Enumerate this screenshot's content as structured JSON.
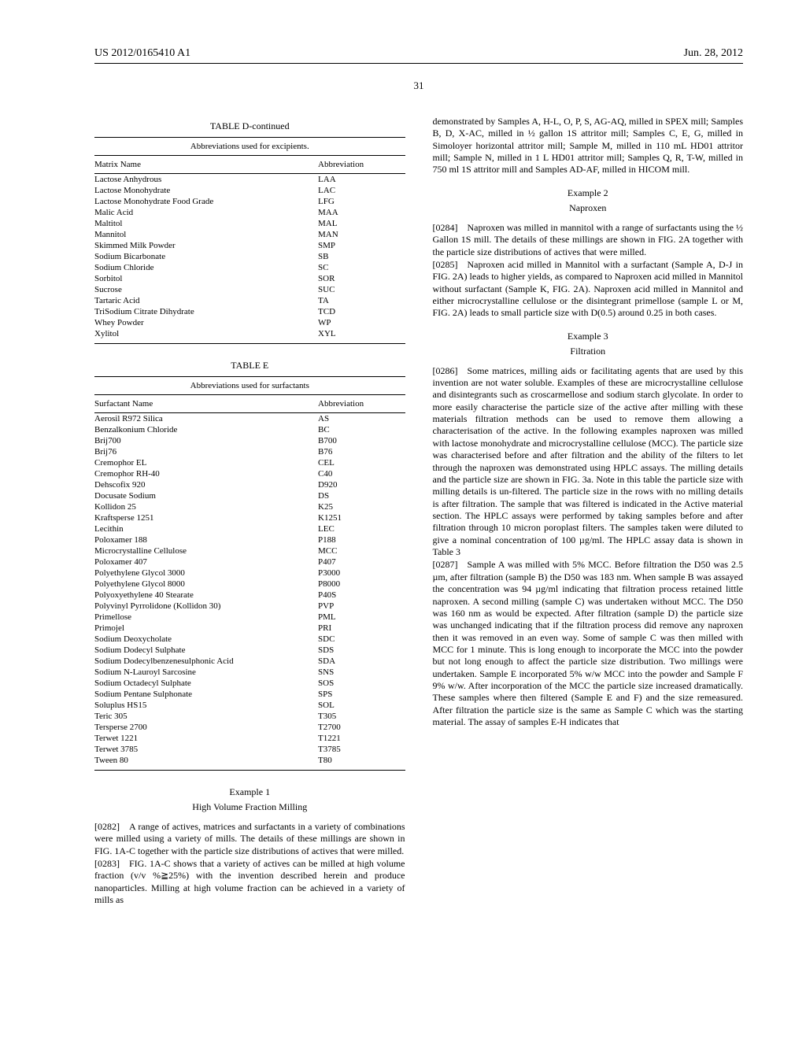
{
  "header": {
    "left": "US 2012/0165410 A1",
    "right": "Jun. 28, 2012"
  },
  "page_number": "31",
  "tableD": {
    "title": "TABLE D-continued",
    "caption": "Abbreviations used for excipients.",
    "headers": [
      "Matrix Name",
      "Abbreviation"
    ],
    "rows": [
      [
        "Lactose Anhydrous",
        "LAA"
      ],
      [
        "Lactose Monohydrate",
        "LAC"
      ],
      [
        "Lactose Monohydrate Food Grade",
        "LFG"
      ],
      [
        "Malic Acid",
        "MAA"
      ],
      [
        "Maltitol",
        "MAL"
      ],
      [
        "Mannitol",
        "MAN"
      ],
      [
        "Skimmed Milk Powder",
        "SMP"
      ],
      [
        "Sodium Bicarbonate",
        "SB"
      ],
      [
        "Sodium Chloride",
        "SC"
      ],
      [
        "Sorbitol",
        "SOR"
      ],
      [
        "Sucrose",
        "SUC"
      ],
      [
        "Tartaric Acid",
        "TA"
      ],
      [
        "TriSodium Citrate Dihydrate",
        "TCD"
      ],
      [
        "Whey Powder",
        "WP"
      ],
      [
        "Xylitol",
        "XYL"
      ]
    ]
  },
  "tableE": {
    "title": "TABLE E",
    "caption": "Abbreviations used for surfactants",
    "headers": [
      "Surfactant Name",
      "Abbreviation"
    ],
    "rows": [
      [
        "Aerosil R972 Silica",
        "AS"
      ],
      [
        "Benzalkonium Chloride",
        "BC"
      ],
      [
        "Brij700",
        "B700"
      ],
      [
        "Brij76",
        "B76"
      ],
      [
        "Cremophor EL",
        "CEL"
      ],
      [
        "Cremophor RH-40",
        "C40"
      ],
      [
        "Dehscofix 920",
        "D920"
      ],
      [
        "Docusate Sodium",
        "DS"
      ],
      [
        "Kollidon 25",
        "K25"
      ],
      [
        "Kraftsperse 1251",
        "K1251"
      ],
      [
        "Lecithin",
        "LEC"
      ],
      [
        "Poloxamer 188",
        "P188"
      ],
      [
        "Microcrystalline Cellulose",
        "MCC"
      ],
      [
        "Poloxamer 407",
        "P407"
      ],
      [
        "Polyethylene Glycol 3000",
        "P3000"
      ],
      [
        "Polyethylene Glycol 8000",
        "P8000"
      ],
      [
        "Polyoxyethylene 40 Stearate",
        "P40S"
      ],
      [
        "Polyvinyl Pyrrolidone (Kollidon 30)",
        "PVP"
      ],
      [
        "Primellose",
        "PML"
      ],
      [
        "Primojel",
        "PRI"
      ],
      [
        "Sodium Deoxycholate",
        "SDC"
      ],
      [
        "Sodium Dodecyl Sulphate",
        "SDS"
      ],
      [
        "Sodium Dodecylbenzenesulphonic Acid",
        "SDA"
      ],
      [
        "Sodium N-Lauroyl Sarcosine",
        "SNS"
      ],
      [
        "Sodium Octadecyl Sulphate",
        "SOS"
      ],
      [
        "Sodium Pentane Sulphonate",
        "SPS"
      ],
      [
        "Soluplus HS15",
        "SOL"
      ],
      [
        "Teric 305",
        "T305"
      ],
      [
        "Tersperse 2700",
        "T2700"
      ],
      [
        "Terwet 1221",
        "T1221"
      ],
      [
        "Terwet 3785",
        "T3785"
      ],
      [
        "Tween 80",
        "T80"
      ]
    ]
  },
  "example1": {
    "title": "Example 1",
    "subtitle": "High Volume Fraction Milling",
    "p0282": "[0282] A range of actives, matrices and surfactants in a variety of combinations were milled using a variety of mills. The details of these millings are shown in FIG. 1A-C together with the particle size distributions of actives that were milled.",
    "p0283": "[0283] FIG. 1A-C shows that a variety of actives can be milled at high volume fraction (v/v %≧25%) with the invention described herein and produce nanoparticles. Milling at high volume fraction can be achieved in a variety of mills as"
  },
  "right_intro": "demonstrated by Samples A, H-L, O, P, S, AG-AQ, milled in SPEX mill; Samples B, D, X-AC, milled in ½ gallon 1S attritor mill; Samples C, E, G, milled in Simoloyer horizontal attritor mill; Sample M, milled in 110 mL HD01 attritor mill; Sample N, milled in 1 L HD01 attritor mill; Samples Q, R, T-W, milled in 750 ml 1S attritor mill and Samples AD-AF, milled in HICOM mill.",
  "example2": {
    "title": "Example 2",
    "subtitle": "Naproxen",
    "p0284": "[0284] Naproxen was milled in mannitol with a range of surfactants using the ½ Gallon 1S mill. The details of these millings are shown in FIG. 2A together with the particle size distributions of actives that were milled.",
    "p0285": "[0285] Naproxen acid milled in Mannitol with a surfactant (Sample A, D-J in FIG. 2A) leads to higher yields, as compared to Naproxen acid milled in Mannitol without surfactant (Sample K, FIG. 2A). Naproxen acid milled in Mannitol and either microcrystalline cellulose or the disintegrant primellose (sample L or M, FIG. 2A) leads to small particle size with D(0.5) around 0.25 in both cases."
  },
  "example3": {
    "title": "Example 3",
    "subtitle": "Filtration",
    "p0286": "[0286] Some matrices, milling aids or facilitating agents that are used by this invention are not water soluble. Examples of these are microcrystalline cellulose and disintegrants such as croscarmellose and sodium starch glycolate. In order to more easily characterise the particle size of the active after milling with these materials filtration methods can be used to remove them allowing a characterisation of the active. In the following examples naproxen was milled with lactose monohydrate and microcrystalline cellulose (MCC). The particle size was characterised before and after filtration and the ability of the filters to let through the naproxen was demonstrated using HPLC assays. The milling details and the particle size are shown in FIG. 3a. Note in this table the particle size with milling details is un-filtered. The particle size in the rows with no milling details is after filtration. The sample that was filtered is indicated in the Active material section. The HPLC assays were performed by taking samples before and after filtration through 10 micron poroplast filters. The samples taken were diluted to give a nominal concentration of 100 µg/ml. The HPLC assay data is shown in Table 3",
    "p0287": "[0287] Sample A was milled with 5% MCC. Before filtration the D50 was 2.5 µm, after filtration (sample B) the D50 was 183 nm. When sample B was assayed the concentration was 94 µg/ml indicating that filtration process retained little naproxen. A second milling (sample C) was undertaken without MCC. The D50 was 160 nm as would be expected. After filtration (sample D) the particle size was unchanged indicating that if the filtration process did remove any naproxen then it was removed in an even way. Some of sample C was then milled with MCC for 1 minute. This is long enough to incorporate the MCC into the powder but not long enough to affect the particle size distribution. Two millings were undertaken. Sample E incorporated 5% w/w MCC into the powder and Sample F 9% w/w. After incorporation of the MCC the particle size increased dramatically. These samples where then filtered (Sample E and F) and the size remeasured. After filtration the particle size is the same as Sample C which was the starting material. The assay of samples E-H indicates that"
  }
}
